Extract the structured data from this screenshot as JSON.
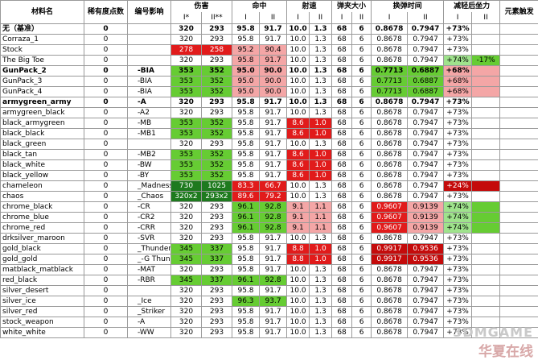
{
  "header": {
    "material": "材料名",
    "rarity": "稀有度点数",
    "code": "编号影响",
    "damage": "伤害",
    "accuracy": "命中",
    "rate": "射速",
    "mag": "弹夹大小",
    "reload": "换弹时间",
    "reduction": "减轻后坐力",
    "element": "元素触发",
    "sub": [
      "I*",
      "II**",
      "I",
      "II",
      "I",
      "II",
      "I",
      "II",
      "I",
      "II",
      "I",
      "II"
    ]
  },
  "rows": [
    {
      "name": "无（基准）",
      "rarity": "0",
      "code": "",
      "v": [
        "320",
        "293",
        "95.8",
        "91.7",
        "10.0",
        "1.3",
        "68",
        "6",
        "0.8678",
        "0.7947",
        "+73%",
        ""
      ],
      "c": [
        "",
        "",
        "",
        "",
        "",
        "",
        "",
        "",
        "",
        "",
        "",
        ""
      ]
    },
    {
      "name": "Corraza_1",
      "rarity": "0",
      "code": "",
      "v": [
        "320",
        "293",
        "95.8",
        "91.7",
        "10.0",
        "1.3",
        "68",
        "6",
        "0.8678",
        "0.7947",
        "+73%",
        ""
      ],
      "c": [
        "",
        "",
        "",
        "",
        "",
        "",
        "",
        "",
        "",
        "",
        "",
        ""
      ]
    },
    {
      "name": "Stock",
      "rarity": "0",
      "code": "",
      "v": [
        "278",
        "258",
        "95.2",
        "90.4",
        "10.0",
        "1.3",
        "68",
        "6",
        "0.8678",
        "0.7947",
        "+73%",
        ""
      ],
      "c": [
        "rd",
        "rd",
        "pk",
        "pk",
        "",
        "",
        "",
        "",
        "",
        "",
        "",
        ""
      ]
    },
    {
      "name": "The Big Toe",
      "rarity": "0",
      "code": "",
      "v": [
        "320",
        "293",
        "95.8",
        "91.7",
        "10.0",
        "1.3",
        "68",
        "6",
        "0.8678",
        "0.7947",
        "+74%",
        "-17%"
      ],
      "c": [
        "",
        "",
        "pk",
        "pk",
        "",
        "",
        "",
        "",
        "",
        "",
        "lg",
        "g"
      ]
    },
    {
      "name": "GunPack_2",
      "rarity": "0",
      "code": "-BIA",
      "v": [
        "353",
        "352",
        "95.0",
        "90.0",
        "10.0",
        "1.3",
        "68",
        "6",
        "0.7713",
        "0.6887",
        "+68%",
        ""
      ],
      "c": [
        "g",
        "g",
        "pk",
        "pk",
        "",
        "",
        "",
        "",
        "g",
        "g",
        "pk",
        "pk"
      ]
    },
    {
      "name": "GunPack_3",
      "rarity": "0",
      "code": "-BIA",
      "v": [
        "353",
        "352",
        "95.0",
        "90.0",
        "10.0",
        "1.3",
        "68",
        "6",
        "0.7713",
        "0.6887",
        "+68%",
        ""
      ],
      "c": [
        "g",
        "g",
        "pk",
        "pk",
        "",
        "",
        "",
        "",
        "g",
        "g",
        "pk",
        "pk"
      ]
    },
    {
      "name": "GunPack_4",
      "rarity": "0",
      "code": "-BIA",
      "v": [
        "353",
        "352",
        "95.0",
        "90.0",
        "10.0",
        "1.3",
        "68",
        "6",
        "0.7713",
        "0.6887",
        "+68%",
        ""
      ],
      "c": [
        "g",
        "g",
        "pk",
        "pk",
        "",
        "",
        "",
        "",
        "g",
        "g",
        "pk",
        "pk"
      ]
    },
    {
      "name": "armygreen_army",
      "rarity": "0",
      "code": "-A",
      "v": [
        "320",
        "293",
        "95.8",
        "91.7",
        "10.0",
        "1.3",
        "68",
        "6",
        "0.8678",
        "0.7947",
        "+73%",
        ""
      ],
      "c": [
        "",
        "",
        "",
        "",
        "",
        "",
        "",
        "",
        "",
        "",
        "",
        ""
      ]
    },
    {
      "name": "armygreen_black",
      "rarity": "0",
      "code": "-A2",
      "v": [
        "320",
        "293",
        "95.8",
        "91.7",
        "10.0",
        "1.3",
        "68",
        "6",
        "0.8678",
        "0.7947",
        "+73%",
        ""
      ],
      "c": [
        "",
        "",
        "",
        "",
        "",
        "",
        "",
        "",
        "",
        "",
        "",
        ""
      ]
    },
    {
      "name": "black_armygreen",
      "rarity": "0",
      "code": "-MB",
      "v": [
        "353",
        "352",
        "95.8",
        "91.7",
        "8.6",
        "1.0",
        "68",
        "6",
        "0.8678",
        "0.7947",
        "+73%",
        ""
      ],
      "c": [
        "g",
        "g",
        "",
        "",
        "rd",
        "rd",
        "",
        "",
        "",
        "",
        "",
        ""
      ]
    },
    {
      "name": "black_black",
      "rarity": "0",
      "code": "-MB1",
      "v": [
        "353",
        "352",
        "95.8",
        "91.7",
        "8.6",
        "1.0",
        "68",
        "6",
        "0.8678",
        "0.7947",
        "+73%",
        ""
      ],
      "c": [
        "g",
        "g",
        "",
        "",
        "rd",
        "rd",
        "",
        "",
        "",
        "",
        "",
        ""
      ]
    },
    {
      "name": "black_green",
      "rarity": "0",
      "code": "",
      "v": [
        "320",
        "293",
        "95.8",
        "91.7",
        "10.0",
        "1.3",
        "68",
        "6",
        "0.8678",
        "0.7947",
        "+73%",
        ""
      ],
      "c": [
        "",
        "",
        "",
        "",
        "",
        "",
        "",
        "",
        "",
        "",
        "",
        ""
      ]
    },
    {
      "name": "black_tan",
      "rarity": "0",
      "code": "-MB2",
      "v": [
        "353",
        "352",
        "95.8",
        "91.7",
        "8.6",
        "1.0",
        "68",
        "6",
        "0.8678",
        "0.7947",
        "+73%",
        ""
      ],
      "c": [
        "g",
        "g",
        "",
        "",
        "rd",
        "rd",
        "",
        "",
        "",
        "",
        "",
        ""
      ]
    },
    {
      "name": "black_white",
      "rarity": "0",
      "code": "-BW",
      "v": [
        "353",
        "352",
        "95.8",
        "91.7",
        "8.6",
        "1.0",
        "68",
        "6",
        "0.8678",
        "0.7947",
        "+73%",
        ""
      ],
      "c": [
        "g",
        "g",
        "",
        "",
        "rd",
        "rd",
        "",
        "",
        "",
        "",
        "",
        ""
      ]
    },
    {
      "name": "black_yellow",
      "rarity": "0",
      "code": "-BY",
      "v": [
        "353",
        "352",
        "95.8",
        "91.7",
        "8.6",
        "1.0",
        "68",
        "6",
        "0.8678",
        "0.7947",
        "+73%",
        ""
      ],
      "c": [
        "g",
        "g",
        "",
        "",
        "rd",
        "rd",
        "",
        "",
        "",
        "",
        "",
        ""
      ]
    },
    {
      "name": "chameleon",
      "rarity": "0",
      "code": "_Madness",
      "v": [
        "730",
        "1025",
        "83.3",
        "66.7",
        "10.0",
        "1.3",
        "68",
        "6",
        "0.8678",
        "0.7947",
        "+24%",
        ""
      ],
      "c": [
        "dg",
        "dg",
        "rd",
        "rd",
        "",
        "",
        "",
        "",
        "",
        "",
        "dr",
        "dr"
      ]
    },
    {
      "name": "chaos",
      "rarity": "0",
      "code": "_Chaos",
      "v": [
        "320x2",
        "293x2",
        "89.6",
        "79.2",
        "10.0",
        "1.3",
        "68",
        "6",
        "0.8678",
        "0.7947",
        "+73%",
        ""
      ],
      "c": [
        "dg",
        "dg",
        "rd",
        "rd",
        "",
        "",
        "",
        "",
        "",
        "",
        "",
        ""
      ]
    },
    {
      "name": "chrome_black",
      "rarity": "0",
      "code": "-CR",
      "v": [
        "320",
        "293",
        "96.1",
        "92.8",
        "9.1",
        "1.1",
        "68",
        "6",
        "0.9607",
        "0.9139",
        "+74%",
        ""
      ],
      "c": [
        "",
        "",
        "g",
        "g",
        "pk",
        "pk",
        "",
        "",
        "rd",
        "pk",
        "lg",
        "g"
      ]
    },
    {
      "name": "chrome_blue",
      "rarity": "0",
      "code": "-CR2",
      "v": [
        "320",
        "293",
        "96.1",
        "92.8",
        "9.1",
        "1.1",
        "68",
        "6",
        "0.9607",
        "0.9139",
        "+74%",
        ""
      ],
      "c": [
        "",
        "",
        "g",
        "g",
        "pk",
        "pk",
        "",
        "",
        "rd",
        "pk",
        "lg",
        "g"
      ]
    },
    {
      "name": "chrome_red",
      "rarity": "0",
      "code": "-CRR",
      "v": [
        "320",
        "293",
        "96.1",
        "92.8",
        "9.1",
        "1.1",
        "68",
        "6",
        "0.9607",
        "0.9139",
        "+74%",
        ""
      ],
      "c": [
        "",
        "",
        "g",
        "g",
        "pk",
        "pk",
        "",
        "",
        "rd",
        "pk",
        "lg",
        "g"
      ]
    },
    {
      "name": "drksilver_maroon",
      "rarity": "0",
      "code": "-SVR",
      "v": [
        "320",
        "293",
        "95.8",
        "91.7",
        "10.0",
        "1.3",
        "68",
        "6",
        "0.8678",
        "0.7947",
        "+73%",
        ""
      ],
      "c": [
        "",
        "",
        "",
        "",
        "",
        "",
        "",
        "",
        "",
        "",
        "",
        ""
      ]
    },
    {
      "name": "gold_black",
      "rarity": "0",
      "code": "_Thunder",
      "v": [
        "345",
        "337",
        "95.8",
        "91.7",
        "8.8",
        "1.0",
        "68",
        "6",
        "0.9917",
        "0.9536",
        "+73%",
        ""
      ],
      "c": [
        "g",
        "g",
        "",
        "",
        "rd",
        "rd",
        "",
        "",
        "dr",
        "dr",
        "",
        ""
      ]
    },
    {
      "name": "gold_gold",
      "rarity": "0",
      "code": "_-G Thunder",
      "v": [
        "345",
        "337",
        "95.8",
        "91.7",
        "8.8",
        "1.0",
        "68",
        "6",
        "0.9917",
        "0.9536",
        "+73%",
        ""
      ],
      "c": [
        "g",
        "g",
        "",
        "",
        "rd",
        "rd",
        "",
        "",
        "dr",
        "dr",
        "",
        ""
      ]
    },
    {
      "name": "matblack_matblack",
      "rarity": "0",
      "code": "-MAT",
      "v": [
        "320",
        "293",
        "95.8",
        "91.7",
        "10.0",
        "1.3",
        "68",
        "6",
        "0.8678",
        "0.7947",
        "+73%",
        ""
      ],
      "c": [
        "",
        "",
        "",
        "",
        "",
        "",
        "",
        "",
        "",
        "",
        "",
        ""
      ]
    },
    {
      "name": "red_black",
      "rarity": "0",
      "code": "-RBR",
      "v": [
        "345",
        "337",
        "96.1",
        "92.8",
        "10.0",
        "1.3",
        "68",
        "6",
        "0.8678",
        "0.7947",
        "+73%",
        ""
      ],
      "c": [
        "g",
        "g",
        "g",
        "g",
        "",
        "",
        "",
        "",
        "",
        "",
        "",
        ""
      ]
    },
    {
      "name": "silver_desert",
      "rarity": "0",
      "code": "",
      "v": [
        "320",
        "293",
        "95.8",
        "91.7",
        "10.0",
        "1.3",
        "68",
        "6",
        "0.8678",
        "0.7947",
        "+73%",
        ""
      ],
      "c": [
        "",
        "",
        "",
        "",
        "",
        "",
        "",
        "",
        "",
        "",
        "",
        ""
      ]
    },
    {
      "name": "silver_ice",
      "rarity": "0",
      "code": "_Ice",
      "v": [
        "320",
        "293",
        "96.3",
        "93.7",
        "10.0",
        "1.3",
        "68",
        "6",
        "0.8678",
        "0.7947",
        "+73%",
        ""
      ],
      "c": [
        "",
        "",
        "g",
        "g",
        "",
        "",
        "",
        "",
        "",
        "",
        "",
        ""
      ]
    },
    {
      "name": "silver_red",
      "rarity": "0",
      "code": "_Striker",
      "v": [
        "320",
        "293",
        "95.8",
        "91.7",
        "10.0",
        "1.3",
        "68",
        "6",
        "0.8678",
        "0.7947",
        "+73%",
        ""
      ],
      "c": [
        "",
        "",
        "",
        "",
        "",
        "",
        "",
        "",
        "",
        "",
        "",
        ""
      ]
    },
    {
      "name": "stock_weapon",
      "rarity": "0",
      "code": "-A",
      "v": [
        "320",
        "293",
        "95.8",
        "91.7",
        "10.0",
        "1.3",
        "68",
        "6",
        "0.8678",
        "0.7947",
        "+73%",
        ""
      ],
      "c": [
        "",
        "",
        "",
        "",
        "",
        "",
        "",
        "",
        "",
        "",
        "",
        ""
      ]
    },
    {
      "name": "white_white",
      "rarity": "0",
      "code": "-WW",
      "v": [
        "320",
        "293",
        "95.8",
        "91.7",
        "10.0",
        "1.3",
        "68",
        "6",
        "0.8678",
        "0.7947",
        "+73%",
        ""
      ],
      "c": [
        "",
        "",
        "",
        "",
        "",
        "",
        "",
        "",
        "",
        "",
        "",
        ""
      ]
    }
  ],
  "watermark": {
    "line1": "3DMGAME",
    "line2": "华夏在线"
  }
}
